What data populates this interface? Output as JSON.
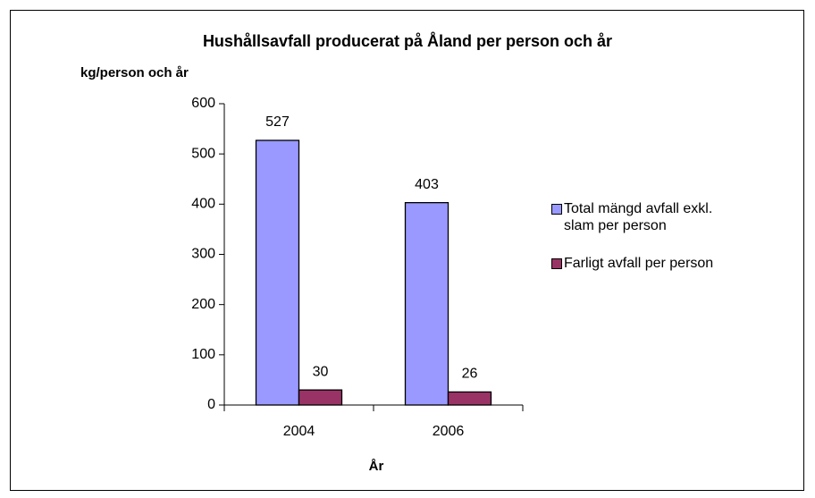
{
  "chart_data": {
    "type": "bar",
    "title": "Hushållsavfall producerat på Åland per person och år",
    "y_label": "kg/person och år",
    "x_label": "År",
    "categories": [
      "2004",
      "2006"
    ],
    "series": [
      {
        "name": "Total mängd avfall exkl. slam per person",
        "color": "#9999ff",
        "values": [
          527,
          403
        ]
      },
      {
        "name": "Farligt avfall per person",
        "color": "#993366",
        "values": [
          30,
          26
        ]
      }
    ],
    "ylim": [
      0,
      600
    ],
    "yticks": [
      0,
      100,
      200,
      300,
      400,
      500,
      600
    ],
    "legend": "right"
  }
}
